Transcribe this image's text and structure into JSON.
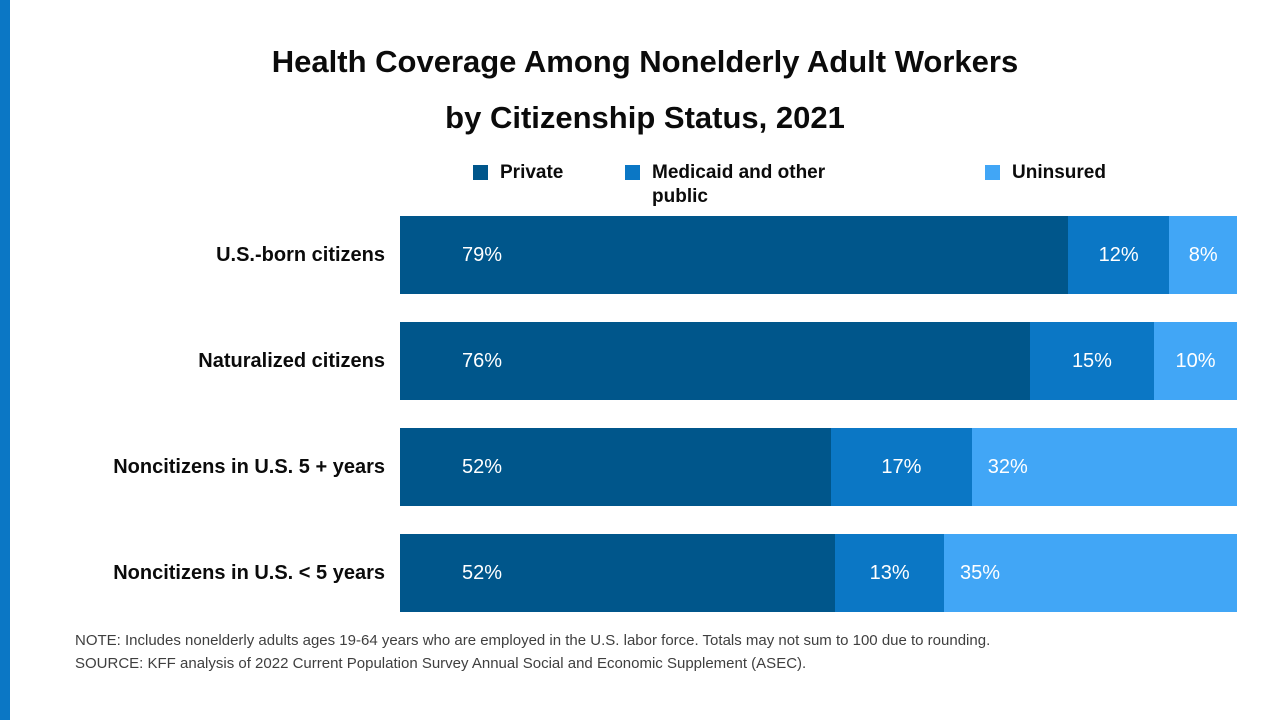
{
  "accent": {
    "stripe_color": "#0b77c5",
    "title_color": "#0b0b0b",
    "note_color": "#3f3f3f"
  },
  "title": {
    "line1": "Health Coverage Among Nonelderly Adult Workers",
    "line2": "by Citizenship Status, 2021"
  },
  "chart_data": {
    "type": "bar",
    "orientation": "horizontal_stacked",
    "title": "Health Coverage Among Nonelderly Adult Workers by Citizenship Status, 2021",
    "value_format": "percent",
    "categories": [
      "U.S.-born citizens",
      "Naturalized citizens",
      "Noncitizens in U.S. 5 + years",
      "Noncitizens in U.S. < 5 years"
    ],
    "series": [
      {
        "name": "Private",
        "color": "#00568b",
        "values": [
          79,
          76,
          52,
          52
        ]
      },
      {
        "name": "Medicaid and other public",
        "color": "#0b77c5",
        "values": [
          12,
          15,
          17,
          13
        ]
      },
      {
        "name": "Uninsured",
        "color": "#41a6f6",
        "values": [
          8,
          10,
          32,
          35
        ]
      }
    ],
    "legend_position": "top",
    "xlim": [
      0,
      100
    ],
    "grid": false
  },
  "footnotes": {
    "note": "NOTE: Includes nonelderly adults ages 19-64 years who are employed in the U.S. labor force. Totals may not sum to 100 due to rounding.",
    "source": "SOURCE: KFF analysis of 2022 Current Population Survey Annual Social and Economic Supplement (ASEC)."
  }
}
